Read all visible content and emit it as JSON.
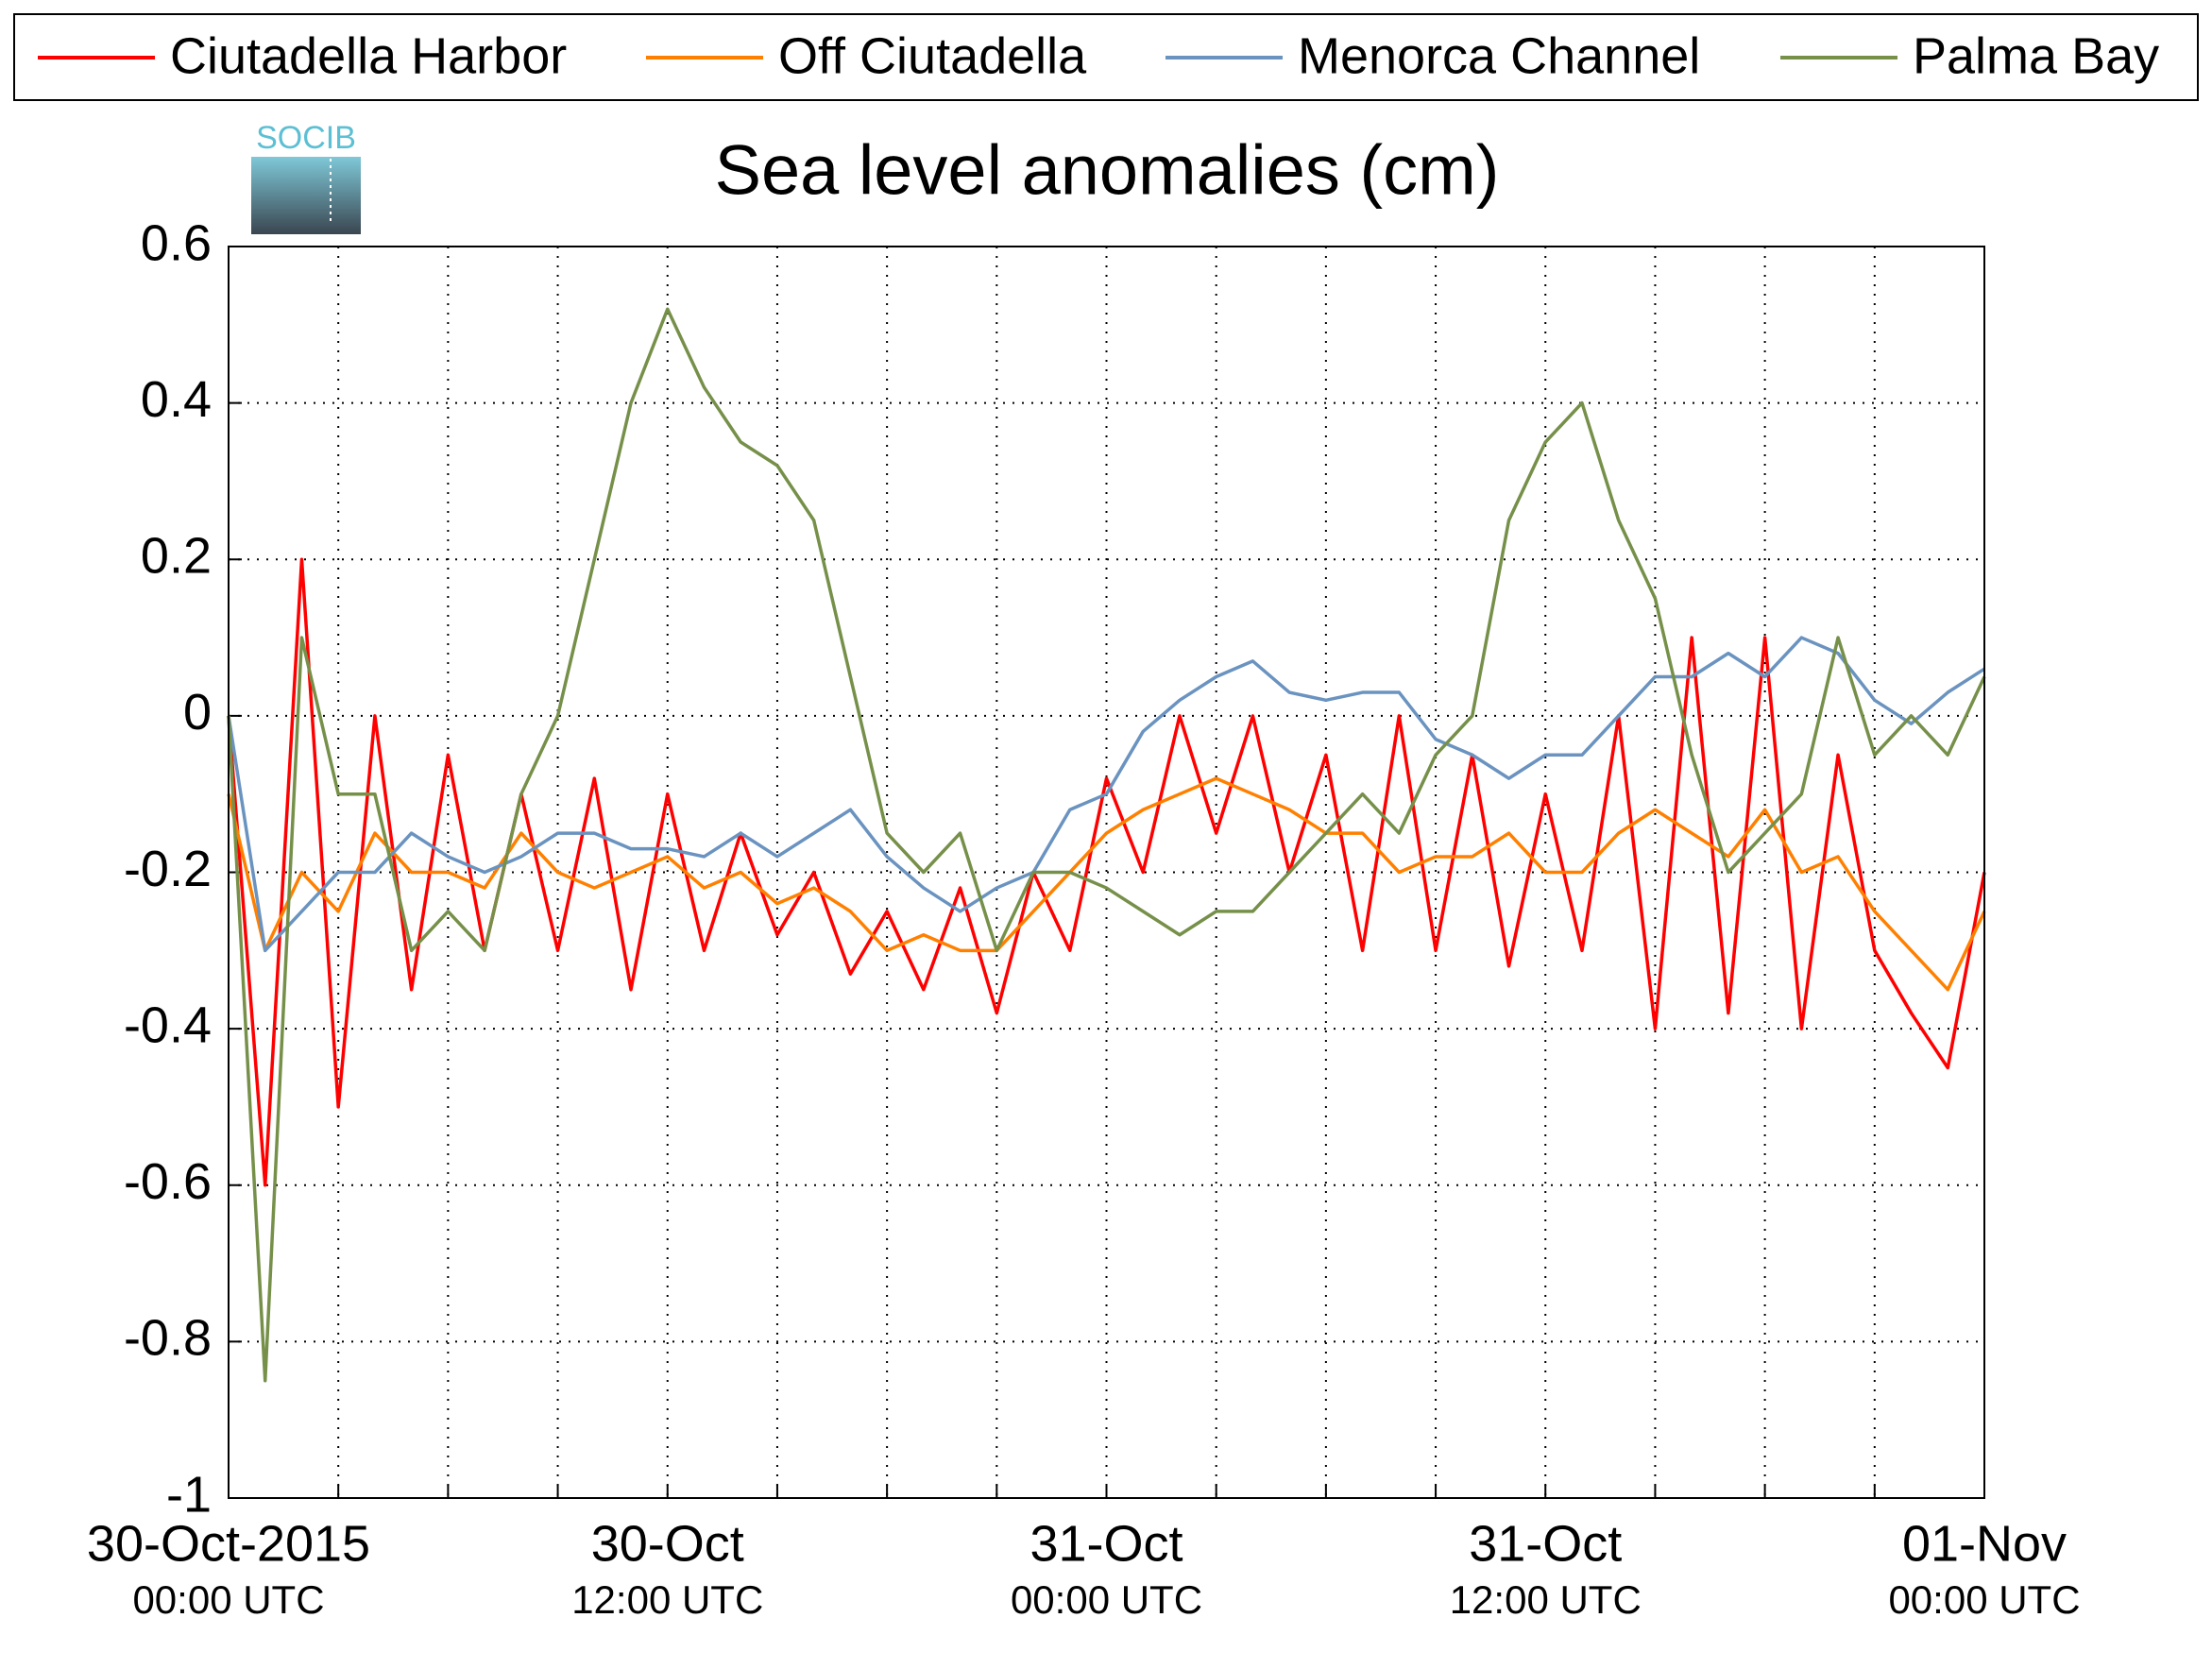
{
  "chart_data": {
    "type": "line",
    "title": "Sea level anomalies (cm)",
    "logo_text": "SOCIB",
    "x": [
      0,
      1,
      2,
      3,
      4,
      5,
      6,
      7,
      8,
      9,
      10,
      11,
      12,
      13,
      14,
      15,
      16,
      17,
      18,
      19,
      20,
      21,
      22,
      23,
      24,
      25,
      26,
      27,
      28,
      29,
      30,
      31,
      32,
      33,
      34,
      35,
      36,
      37,
      38,
      39,
      40,
      41,
      42,
      43,
      44,
      45,
      46,
      47,
      48
    ],
    "series": [
      {
        "name": "Ciutadella Harbor",
        "color": "#ff0000",
        "values": [
          0.0,
          -0.6,
          0.2,
          -0.5,
          0.0,
          -0.35,
          -0.05,
          -0.3,
          -0.1,
          -0.3,
          -0.08,
          -0.35,
          -0.1,
          -0.3,
          -0.15,
          -0.28,
          -0.2,
          -0.33,
          -0.25,
          -0.35,
          -0.22,
          -0.38,
          -0.2,
          -0.3,
          -0.08,
          -0.2,
          0.0,
          -0.15,
          0.0,
          -0.2,
          -0.05,
          -0.3,
          0.0,
          -0.3,
          -0.05,
          -0.32,
          -0.1,
          -0.3,
          0.0,
          -0.4,
          0.1,
          -0.38,
          0.1,
          -0.4,
          -0.05,
          -0.3,
          -0.38,
          -0.45,
          -0.2
        ]
      },
      {
        "name": "Off Ciutadella",
        "color": "#ff8000",
        "values": [
          -0.1,
          -0.3,
          -0.2,
          -0.25,
          -0.15,
          -0.2,
          -0.2,
          -0.22,
          -0.15,
          -0.2,
          -0.22,
          -0.2,
          -0.18,
          -0.22,
          -0.2,
          -0.24,
          -0.22,
          -0.25,
          -0.3,
          -0.28,
          -0.3,
          -0.3,
          -0.25,
          -0.2,
          -0.15,
          -0.12,
          -0.1,
          -0.08,
          -0.1,
          -0.12,
          -0.15,
          -0.15,
          -0.2,
          -0.18,
          -0.18,
          -0.15,
          -0.2,
          -0.2,
          -0.15,
          -0.12,
          -0.15,
          -0.18,
          -0.12,
          -0.2,
          -0.18,
          -0.25,
          -0.3,
          -0.35,
          -0.25
        ]
      },
      {
        "name": "Menorca Channel",
        "color": "#6a93c0",
        "values": [
          0.0,
          -0.3,
          -0.25,
          -0.2,
          -0.2,
          -0.15,
          -0.18,
          -0.2,
          -0.18,
          -0.15,
          -0.15,
          -0.17,
          -0.17,
          -0.18,
          -0.15,
          -0.18,
          -0.15,
          -0.12,
          -0.18,
          -0.22,
          -0.25,
          -0.22,
          -0.2,
          -0.12,
          -0.1,
          -0.02,
          0.02,
          0.05,
          0.07,
          0.03,
          0.02,
          0.03,
          0.03,
          -0.03,
          -0.05,
          -0.08,
          -0.05,
          -0.05,
          0.0,
          0.05,
          0.05,
          0.08,
          0.05,
          0.1,
          0.08,
          0.02,
          -0.01,
          0.03,
          0.06
        ]
      },
      {
        "name": "Palma Bay",
        "color": "#76904a",
        "values": [
          0.0,
          -0.85,
          0.1,
          -0.1,
          -0.1,
          -0.3,
          -0.25,
          -0.3,
          -0.1,
          0.0,
          0.2,
          0.4,
          0.52,
          0.42,
          0.35,
          0.32,
          0.25,
          0.05,
          -0.15,
          -0.2,
          -0.15,
          -0.3,
          -0.2,
          -0.2,
          -0.22,
          -0.25,
          -0.28,
          -0.25,
          -0.25,
          -0.2,
          -0.15,
          -0.1,
          -0.15,
          -0.05,
          0.0,
          0.25,
          0.35,
          0.4,
          0.25,
          0.15,
          -0.05,
          -0.2,
          -0.15,
          -0.1,
          0.1,
          -0.05,
          0.0,
          -0.05,
          0.05
        ]
      }
    ],
    "xlim": [
      0,
      48
    ],
    "xticks": [
      {
        "value": 0,
        "label": "30-Oct-2015",
        "sublabel": "00:00 UTC"
      },
      {
        "value": 12,
        "label": "30-Oct",
        "sublabel": "12:00 UTC"
      },
      {
        "value": 24,
        "label": "31-Oct",
        "sublabel": "00:00 UTC"
      },
      {
        "value": 36,
        "label": "31-Oct",
        "sublabel": "12:00 UTC"
      },
      {
        "value": 48,
        "label": "01-Nov",
        "sublabel": "00:00 UTC"
      }
    ],
    "xminor": [
      3,
      6,
      9,
      15,
      18,
      21,
      27,
      30,
      33,
      39,
      42,
      45
    ],
    "ylim": [
      -1,
      0.6
    ],
    "yticks": [
      -1,
      -0.8,
      -0.6,
      -0.4,
      -0.2,
      0,
      0.2,
      0.4,
      0.6
    ],
    "grid": true
  }
}
